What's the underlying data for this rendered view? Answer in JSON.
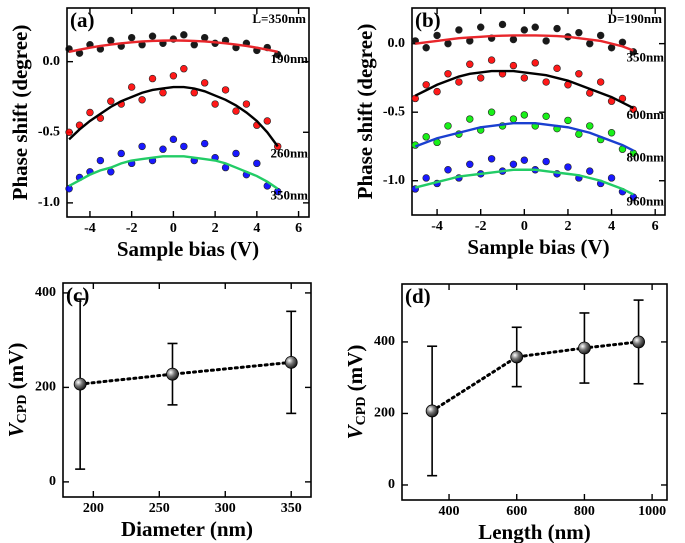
{
  "chart_data": [
    {
      "type": "scatter",
      "panel_label": "(a)",
      "note": "L=350nm",
      "xlabel": "Sample bias (V)",
      "ylabel": "Phase shift (degree)",
      "xlim": [
        -5.1,
        6.5
      ],
      "xticks": [
        -4,
        -2,
        0,
        2,
        4,
        6
      ],
      "ylim": [
        -1.1,
        0.38
      ],
      "yticks": [
        -1.0,
        -0.5,
        0.0
      ],
      "x": [
        -5,
        -4.5,
        -4,
        -3.5,
        -3,
        -2.5,
        -2,
        -1.5,
        -1,
        -0.5,
        0,
        0.5,
        1,
        1.5,
        2,
        2.5,
        3,
        3.5,
        4,
        4.5,
        5
      ],
      "series": [
        {
          "name": "190nm",
          "color": "#000000",
          "fit_color": "#e8262b",
          "values": [
            0.09,
            0.06,
            0.12,
            0.09,
            0.15,
            0.11,
            0.17,
            0.12,
            0.18,
            0.13,
            0.16,
            0.19,
            0.12,
            0.17,
            0.13,
            0.15,
            0.1,
            0.13,
            0.08,
            0.1,
            0.05
          ],
          "fit": [
            0.07,
            0.085,
            0.099,
            0.111,
            0.121,
            0.13,
            0.137,
            0.143,
            0.147,
            0.149,
            0.15,
            0.149,
            0.147,
            0.143,
            0.137,
            0.13,
            0.121,
            0.111,
            0.099,
            0.085,
            0.07
          ]
        },
        {
          "name": "260nm",
          "color": "#ff0000",
          "fit_color": "#000000",
          "values": [
            -0.5,
            -0.45,
            -0.36,
            -0.4,
            -0.28,
            -0.3,
            -0.18,
            -0.27,
            -0.12,
            -0.22,
            -0.1,
            -0.05,
            -0.22,
            -0.15,
            -0.3,
            -0.2,
            -0.35,
            -0.3,
            -0.45,
            -0.42,
            -0.6
          ],
          "fit": [
            -0.55,
            -0.48,
            -0.42,
            -0.37,
            -0.32,
            -0.28,
            -0.25,
            -0.22,
            -0.2,
            -0.19,
            -0.18,
            -0.18,
            -0.19,
            -0.21,
            -0.24,
            -0.27,
            -0.31,
            -0.36,
            -0.42,
            -0.5,
            -0.6
          ]
        },
        {
          "name": "350nm",
          "color": "#0000ff",
          "fit_color": "#22cc66",
          "values": [
            -0.9,
            -0.82,
            -0.78,
            -0.7,
            -0.78,
            -0.65,
            -0.72,
            -0.6,
            -0.7,
            -0.62,
            -0.55,
            -0.6,
            -0.7,
            -0.58,
            -0.68,
            -0.75,
            -0.65,
            -0.8,
            -0.72,
            -0.88,
            -0.92
          ],
          "fit": [
            -0.88,
            -0.84,
            -0.8,
            -0.77,
            -0.75,
            -0.72,
            -0.7,
            -0.69,
            -0.68,
            -0.67,
            -0.67,
            -0.67,
            -0.68,
            -0.69,
            -0.7,
            -0.72,
            -0.75,
            -0.78,
            -0.81,
            -0.85,
            -0.9
          ]
        }
      ]
    },
    {
      "type": "scatter",
      "panel_label": "(b)",
      "note": "D=190nm",
      "xlabel": "Sample bias (V)",
      "ylabel": "Phase shift (degree)",
      "xlim": [
        -5.15,
        6.45
      ],
      "xticks": [
        -4,
        -2,
        0,
        2,
        4,
        6
      ],
      "ylim": [
        -1.25,
        0.26
      ],
      "yticks": [
        -1.0,
        -0.5,
        0.0
      ],
      "x": [
        -5,
        -4.5,
        -4,
        -3.5,
        -3,
        -2.5,
        -2,
        -1.5,
        -1,
        -0.5,
        0,
        0.5,
        1,
        1.5,
        2,
        2.5,
        3,
        3.5,
        4,
        4.5,
        5
      ],
      "series": [
        {
          "name": "350nm",
          "color": "#000000",
          "fit_color": "#e8262b",
          "values": [
            0.02,
            -0.03,
            0.06,
            0.0,
            0.1,
            0.02,
            0.12,
            0.04,
            0.14,
            0.03,
            0.1,
            0.12,
            0.02,
            0.11,
            0.05,
            0.08,
            0.0,
            0.06,
            -0.03,
            0.01,
            -0.06
          ],
          "fit": [
            0.0,
            0.01,
            0.02,
            0.03,
            0.04,
            0.045,
            0.05,
            0.055,
            0.058,
            0.06,
            0.06,
            0.06,
            0.058,
            0.055,
            0.05,
            0.04,
            0.03,
            0.02,
            0.0,
            -0.02,
            -0.05
          ]
        },
        {
          "name": "600nm",
          "color": "#ff0000",
          "fit_color": "#000000",
          "values": [
            -0.4,
            -0.3,
            -0.35,
            -0.22,
            -0.28,
            -0.15,
            -0.25,
            -0.12,
            -0.22,
            -0.16,
            -0.25,
            -0.14,
            -0.28,
            -0.18,
            -0.3,
            -0.22,
            -0.36,
            -0.28,
            -0.42,
            -0.4,
            -0.48
          ],
          "fit": [
            -0.38,
            -0.34,
            -0.3,
            -0.27,
            -0.24,
            -0.22,
            -0.21,
            -0.2,
            -0.2,
            -0.2,
            -0.21,
            -0.22,
            -0.23,
            -0.25,
            -0.27,
            -0.3,
            -0.33,
            -0.36,
            -0.39,
            -0.43,
            -0.47
          ]
        },
        {
          "name": "800nm",
          "color": "#00ee00",
          "fit_color": "#1a3fd0",
          "values": [
            -0.74,
            -0.68,
            -0.72,
            -0.6,
            -0.66,
            -0.55,
            -0.63,
            -0.5,
            -0.6,
            -0.55,
            -0.52,
            -0.6,
            -0.53,
            -0.62,
            -0.56,
            -0.66,
            -0.6,
            -0.7,
            -0.65,
            -0.77,
            -0.8
          ],
          "fit": [
            -0.75,
            -0.72,
            -0.69,
            -0.67,
            -0.65,
            -0.63,
            -0.61,
            -0.6,
            -0.59,
            -0.58,
            -0.58,
            -0.58,
            -0.59,
            -0.6,
            -0.61,
            -0.63,
            -0.65,
            -0.68,
            -0.71,
            -0.74,
            -0.78
          ]
        },
        {
          "name": "960nm",
          "color": "#0000ff",
          "fit_color": "#22cc66",
          "values": [
            -1.06,
            -0.98,
            -1.02,
            -0.92,
            -0.98,
            -0.88,
            -0.95,
            -0.84,
            -0.93,
            -0.88,
            -0.85,
            -0.92,
            -0.86,
            -0.95,
            -0.9,
            -0.98,
            -0.93,
            -1.02,
            -0.98,
            -1.08,
            -1.12
          ],
          "fit": [
            -1.05,
            -1.03,
            -1.01,
            -0.99,
            -0.97,
            -0.96,
            -0.95,
            -0.94,
            -0.93,
            -0.92,
            -0.92,
            -0.92,
            -0.93,
            -0.94,
            -0.95,
            -0.96,
            -0.98,
            -1.0,
            -1.03,
            -1.06,
            -1.1
          ]
        }
      ]
    },
    {
      "type": "errorbar",
      "panel_label": "(c)",
      "xlabel": "Diameter (nm)",
      "ylabel": {
        "main": "V",
        "sub": "CPD",
        "unit": " (mV)"
      },
      "xlim": [
        177,
        365
      ],
      "xticks": [
        200,
        250,
        300,
        350
      ],
      "ylim": [
        -32,
        421
      ],
      "yticks": [
        0,
        200,
        400
      ],
      "x": [
        190,
        260,
        350
      ],
      "values": [
        207,
        228,
        253
      ],
      "errors": [
        180,
        65,
        108
      ],
      "color": "#000000"
    },
    {
      "type": "errorbar",
      "panel_label": "(d)",
      "xlabel": "Length (nm)",
      "ylabel": {
        "main": "V",
        "sub": "CPD",
        "unit": " (mV)"
      },
      "xlim": [
        261,
        1044
      ],
      "xticks": [
        400,
        600,
        800,
        1000
      ],
      "ylim": [
        -42,
        562
      ],
      "yticks": [
        0,
        200,
        400
      ],
      "x": [
        350,
        600,
        800,
        960
      ],
      "values": [
        207,
        358,
        383,
        400
      ],
      "errors": [
        181,
        83,
        98,
        117
      ],
      "color": "#000000"
    }
  ]
}
